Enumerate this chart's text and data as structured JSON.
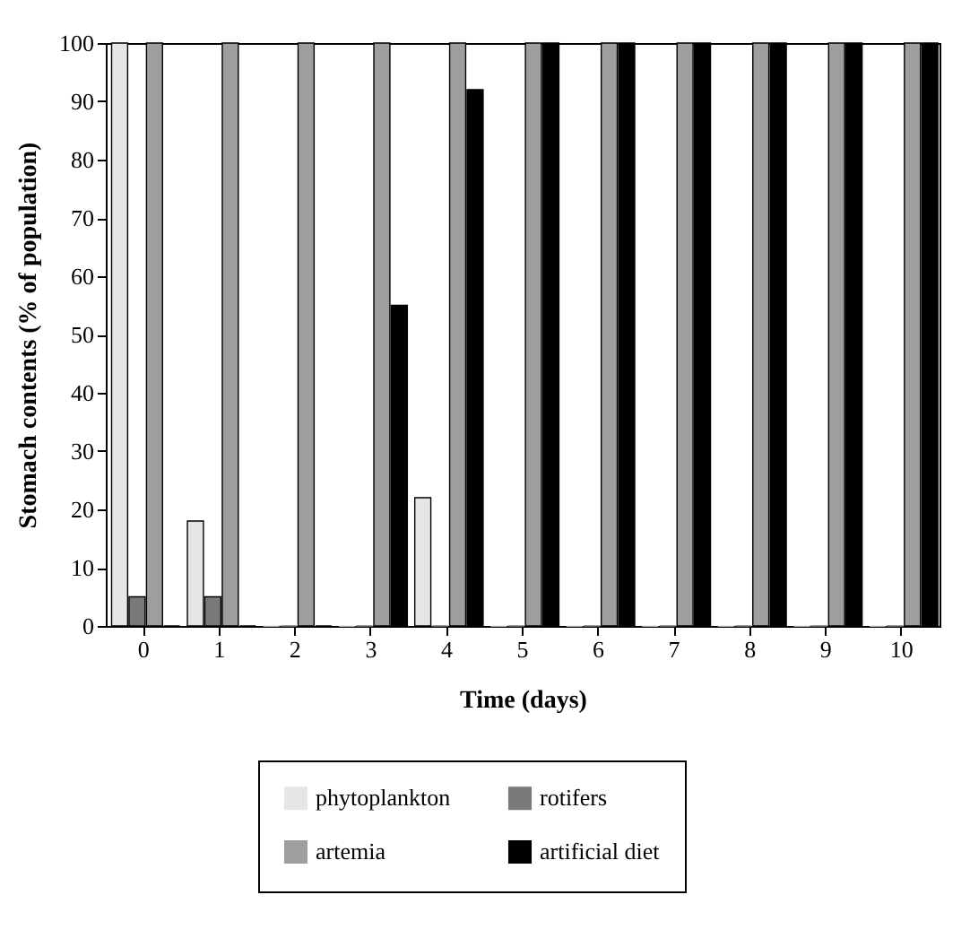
{
  "chart_data": {
    "type": "bar",
    "xlabel": "Time (days)",
    "ylabel": "Stomach contents (% of population)",
    "categories": [
      "0",
      "1",
      "2",
      "3",
      "4",
      "5",
      "6",
      "7",
      "8",
      "9",
      "10"
    ],
    "series": [
      {
        "name": "phytoplankton",
        "color": "#e6e6e6",
        "values": [
          100,
          18,
          0,
          0,
          22,
          0,
          0,
          0,
          0,
          0,
          0
        ]
      },
      {
        "name": "rotifers",
        "color": "#7a7a7a",
        "values": [
          5,
          5,
          0,
          0,
          0,
          0,
          0,
          0,
          0,
          0,
          0
        ]
      },
      {
        "name": "artemia",
        "color": "#9e9e9e",
        "values": [
          100,
          100,
          100,
          100,
          100,
          100,
          100,
          100,
          100,
          100,
          100
        ]
      },
      {
        "name": "artificial diet",
        "color": "#000000",
        "values": [
          0,
          0,
          0,
          55,
          92,
          100,
          100,
          100,
          100,
          100,
          100
        ]
      }
    ],
    "ylim": [
      0,
      100
    ],
    "yticks": [
      0,
      10,
      20,
      30,
      40,
      50,
      60,
      70,
      80,
      90,
      100
    ],
    "grid": false,
    "legend": "bottom"
  }
}
